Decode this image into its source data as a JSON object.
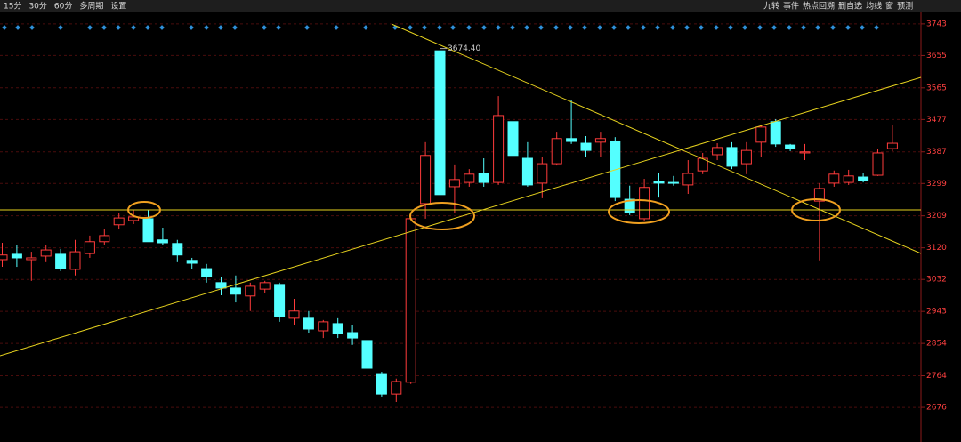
{
  "toolbar": {
    "left": [
      "15分",
      "30分",
      "60分",
      "多周期",
      "设置"
    ],
    "right": [
      "九转",
      "事件",
      "热点回溯",
      "删自选",
      "均线",
      "窗",
      "预测"
    ]
  },
  "chart_data": {
    "type": "candlestick",
    "up_color": "#ff3b3b",
    "down_color": "#54ffff",
    "ylim": [
      2597,
      3760
    ],
    "yticks": [
      3743,
      3655,
      3565,
      3477,
      3387,
      3299,
      3209,
      3120,
      3032,
      2943,
      2854,
      2764,
      2676
    ],
    "grid": true,
    "annotation": "3674.40",
    "open": [
      3087,
      3102,
      3087,
      3097,
      3102,
      3060,
      3104,
      3137,
      3184,
      3196,
      3201,
      3142,
      3132,
      3085,
      3062,
      3023,
      3008,
      2986,
      3005,
      3018,
      2924,
      2924,
      2889,
      2909,
      2884,
      2862,
      2770,
      2713,
      2746,
      3243,
      3668,
      3290,
      3302,
      3327,
      3302,
      3471,
      3369,
      3300,
      3354,
      3424,
      3411,
      3414,
      3416,
      3255,
      3201,
      3305,
      3302,
      3295,
      3334,
      3379,
      3399,
      3354,
      3414,
      3471,
      3406,
      3384,
      3250,
      3300,
      3302,
      3317,
      3322,
      3396
    ],
    "high": [
      3134,
      3129,
      3109,
      3127,
      3117,
      3142,
      3154,
      3171,
      3216,
      3226,
      3226,
      3176,
      3142,
      3092,
      3075,
      3038,
      3043,
      3023,
      3028,
      3023,
      2978,
      2944,
      2919,
      2924,
      2904,
      2869,
      2775,
      2756,
      3206,
      3414,
      3674.4,
      3352,
      3339,
      3369,
      3542,
      3525,
      3414,
      3374,
      3443,
      3530,
      3431,
      3443,
      3428,
      3293,
      3312,
      3327,
      3320,
      3364,
      3384,
      3411,
      3414,
      3414,
      3463,
      3478,
      3409,
      3409,
      3300,
      3335,
      3337,
      3327,
      3394,
      3463
    ],
    "low": [
      3067,
      3067,
      3028,
      3080,
      3055,
      3043,
      3092,
      3129,
      3171,
      3186,
      3137,
      3129,
      3080,
      3060,
      3023,
      2988,
      2968,
      2944,
      2993,
      2914,
      2904,
      2884,
      2869,
      2869,
      2850,
      2780,
      2706,
      2691,
      2741,
      3201,
      3240,
      3216,
      3290,
      3290,
      3295,
      3364,
      3290,
      3258,
      3349,
      3409,
      3374,
      3374,
      3250,
      3211,
      3196,
      3260,
      3293,
      3270,
      3325,
      3364,
      3339,
      3325,
      3374,
      3401,
      3389,
      3364,
      3085,
      3290,
      3295,
      3302,
      3320,
      3389
    ],
    "close": [
      3100,
      3092,
      3092,
      3114,
      3062,
      3109,
      3137,
      3154,
      3203,
      3206,
      3137,
      3134,
      3100,
      3077,
      3040,
      3008,
      2991,
      3013,
      3023,
      2929,
      2944,
      2894,
      2914,
      2882,
      2869,
      2785,
      2713,
      2748,
      3201,
      3377,
      3268,
      3310,
      3325,
      3302,
      3488,
      3377,
      3295,
      3354,
      3424,
      3416,
      3391,
      3424,
      3260,
      3218,
      3288,
      3300,
      3300,
      3327,
      3369,
      3399,
      3347,
      3391,
      3456,
      3409,
      3396,
      3387,
      3285,
      3325,
      3320,
      3307,
      3384,
      3411
    ]
  }
}
